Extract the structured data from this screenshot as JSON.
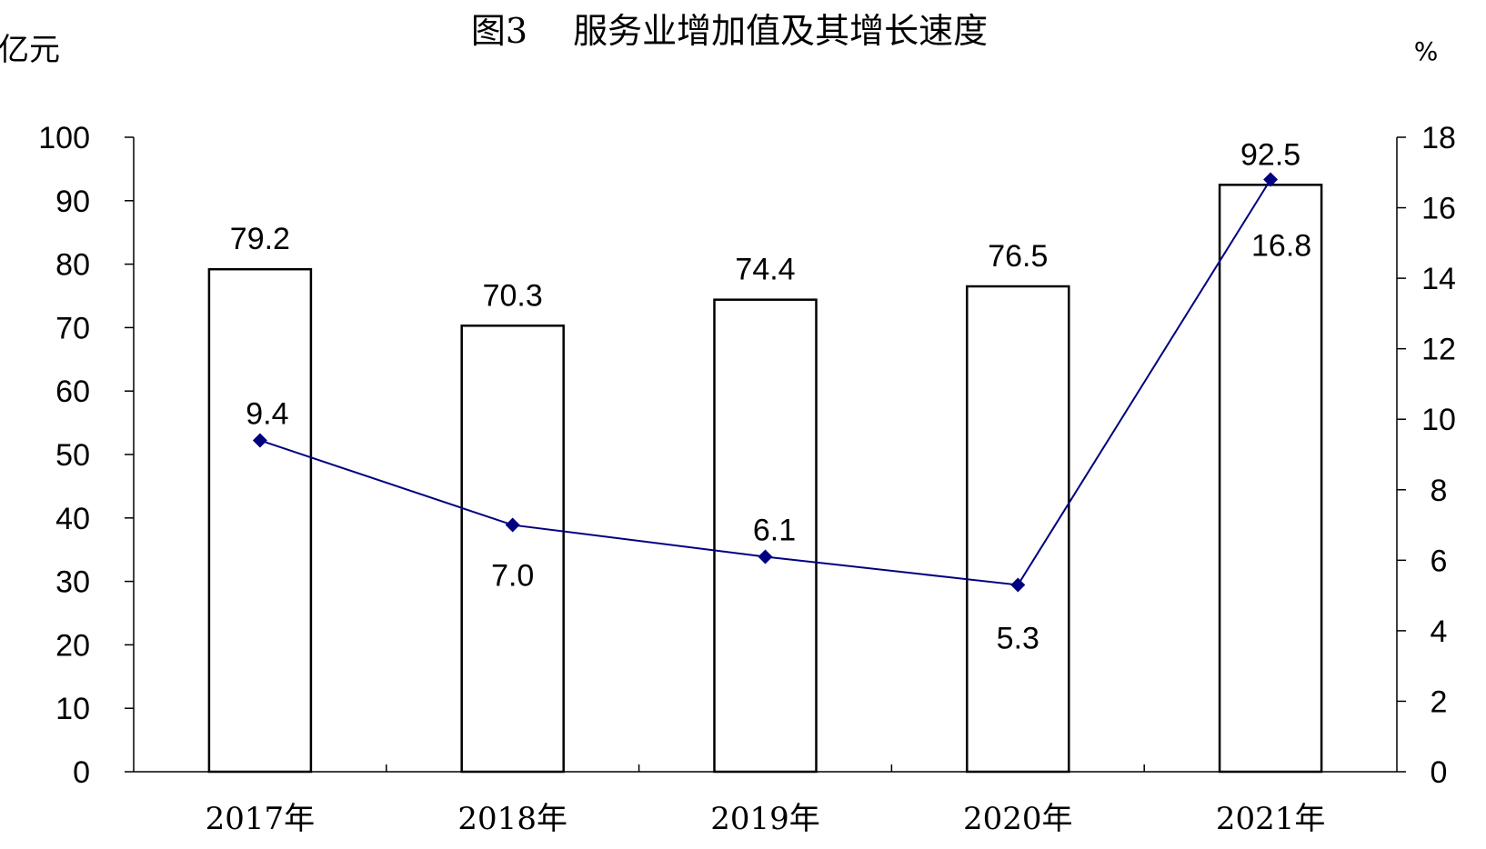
{
  "chart_data": {
    "type": "bar",
    "title": "图3　 服务业增加值及其增长速度",
    "y_left_unit": "亿元",
    "y_right_unit": "%",
    "categories": [
      "2017年",
      "2018年",
      "2019年",
      "2020年",
      "2021年"
    ],
    "series": [
      {
        "type": "bar",
        "axis": "left",
        "values": [
          79.2,
          70.3,
          74.4,
          76.5,
          92.5
        ],
        "color": "#ffffff",
        "stroke": "#000000"
      },
      {
        "type": "line",
        "axis": "right",
        "values": [
          9.4,
          7.0,
          6.1,
          5.3,
          16.8
        ],
        "color": "#000080"
      }
    ],
    "y_left": {
      "ylim": [
        0,
        100
      ],
      "ticks": [
        "0",
        "10",
        "20",
        "30",
        "40",
        "50",
        "60",
        "70",
        "80",
        "90",
        "100"
      ]
    },
    "y_right": {
      "ylim": [
        0,
        18
      ],
      "ticks": [
        "0",
        "2",
        "4",
        "6",
        "8",
        "10",
        "12",
        "14",
        "16",
        "18"
      ]
    },
    "bar_labels": [
      "79.2",
      "70.3",
      "74.4",
      "76.5",
      "92.5"
    ],
    "line_labels": [
      "9.4",
      "7.0",
      "6.1",
      "5.3",
      "16.8"
    ],
    "grid": false,
    "legend": "none"
  }
}
